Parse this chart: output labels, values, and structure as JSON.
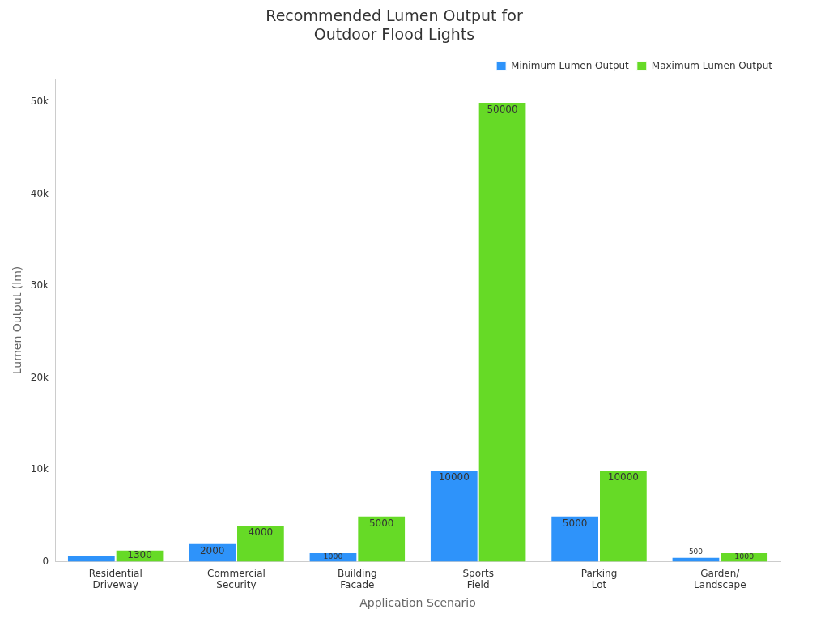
{
  "chart_data": {
    "type": "bar",
    "title": "Recommended Lumen Output for Outdoor Flood Lights",
    "xlabel": "Application Scenario",
    "ylabel": "Lumen Output (lm)",
    "categories": [
      "Residential Driveway",
      "Commercial Security",
      "Building Facade",
      "Sports Field",
      "Parking Lot",
      "Garden/ Landscape"
    ],
    "series": [
      {
        "name": "Minimum Lumen Output",
        "color": "#2e93fa",
        "values": [
          700,
          2000,
          1000,
          10000,
          5000,
          500
        ],
        "value_labels": [
          null,
          "2000",
          "1000",
          "10000",
          "5000",
          "500"
        ]
      },
      {
        "name": "Maximum Lumen Output",
        "color": "#66da26",
        "values": [
          1300,
          4000,
          5000,
          50000,
          10000,
          1000
        ],
        "value_labels": [
          "1300",
          "4000",
          "5000",
          "50000",
          "10000",
          "1000"
        ]
      }
    ],
    "ylim": [
      0,
      52500
    ],
    "yticks": [
      0,
      {
        "value": 10000,
        "label": "10k"
      },
      {
        "value": 20000,
        "label": "20k"
      },
      {
        "value": 30000,
        "label": "30k"
      },
      {
        "value": 40000,
        "label": "40k"
      },
      {
        "value": 50000,
        "label": "50k"
      }
    ],
    "grid": false,
    "legend": "top right"
  }
}
